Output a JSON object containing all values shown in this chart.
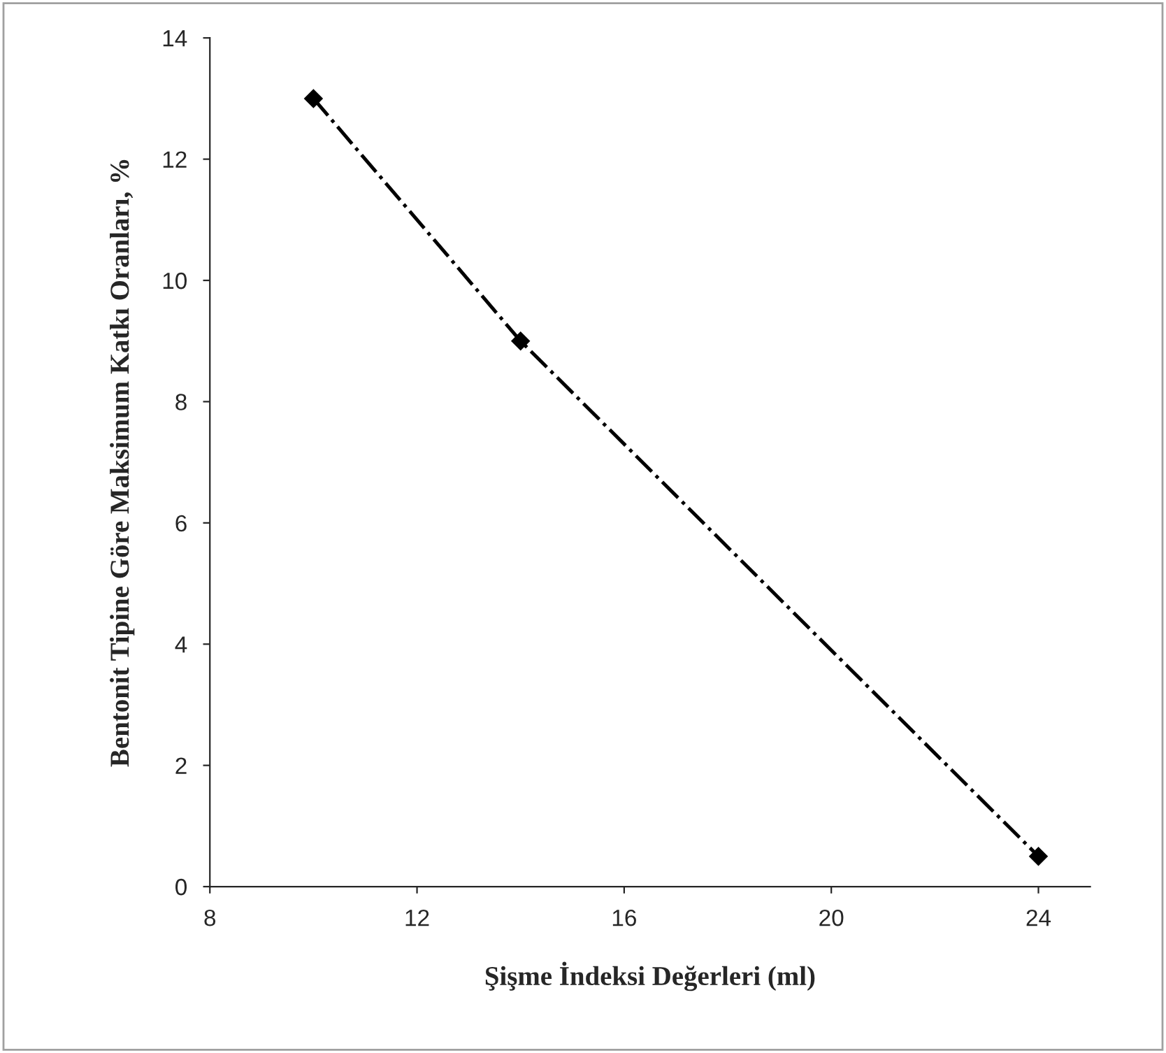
{
  "chart_data": {
    "type": "line",
    "xlabel": "Şişme İndeksi Değerleri (ml)",
    "ylabel": "Bentonit Tipine Göre Maksimum Katkı Oranları, %",
    "x": [
      10,
      14,
      24
    ],
    "series": [
      {
        "color": "#000000",
        "values": [
          13,
          9,
          0.5
        ]
      }
    ],
    "marker": "diamond",
    "line_style": "dashdot",
    "xlim": [
      8,
      25
    ],
    "xticks": [
      8,
      12,
      16,
      20,
      24
    ],
    "ylim": [
      0,
      14
    ],
    "yticks": [
      0,
      2,
      4,
      6,
      8,
      10,
      12,
      14
    ],
    "grid": false,
    "legend": false
  }
}
